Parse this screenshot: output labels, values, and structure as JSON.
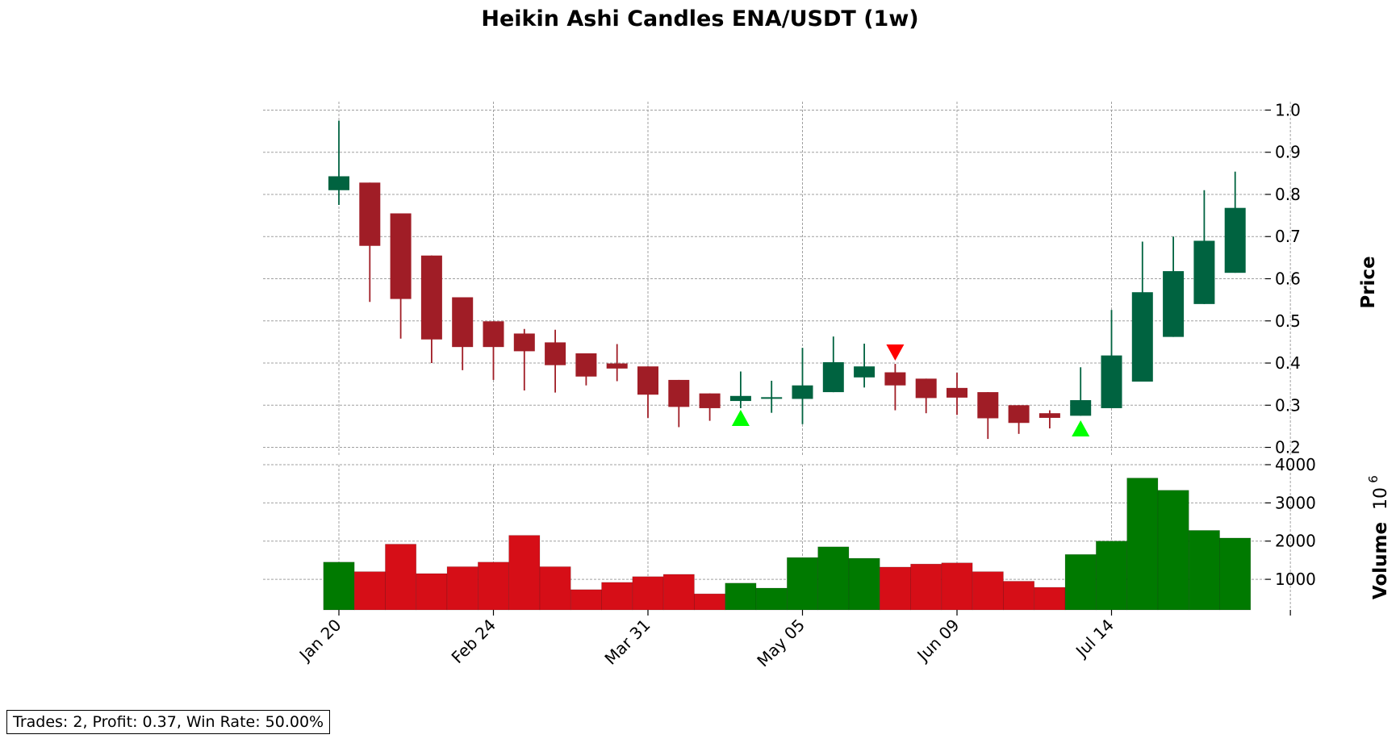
{
  "chart_data": {
    "type": "candlestick",
    "title": "Heikin Ashi Candles ENA/USDT (1w)",
    "price_axis": {
      "label": "Price",
      "ticks": [
        0.2,
        0.3,
        0.4,
        0.5,
        0.6,
        0.7,
        0.8,
        0.9,
        1.0
      ],
      "tick_labels": [
        "0.2",
        "0.3",
        "0.4",
        "0.5",
        "0.6",
        "0.7",
        "0.8",
        "0.9",
        "1.0"
      ],
      "ylim": [
        0.18,
        1.02
      ],
      "grid": true
    },
    "volume_axis": {
      "label": "Volume",
      "multiplier_label": "10",
      "multiplier_exponent": "6",
      "ticks": [
        1000,
        2000,
        3000,
        4000
      ],
      "tick_labels": [
        "1000",
        "2000",
        "3000",
        "4000"
      ],
      "ylim": [
        200,
        4000
      ],
      "grid": true
    },
    "x_axis": {
      "tick_labels": [
        "Jan 20",
        "Feb 24",
        "Mar 31",
        "May 05",
        "Jun 09",
        "Jul 14"
      ],
      "tick_positions": [
        0,
        5,
        10,
        15,
        20,
        25
      ],
      "xlim": [
        -0.5,
        30.5
      ]
    },
    "candles": [
      {
        "open": 0.81,
        "high": 0.975,
        "low": 0.775,
        "close": 0.843
      },
      {
        "open": 0.828,
        "high": 0.828,
        "low": 0.545,
        "close": 0.678
      },
      {
        "open": 0.755,
        "high": 0.755,
        "low": 0.458,
        "close": 0.552
      },
      {
        "open": 0.655,
        "high": 0.655,
        "low": 0.4,
        "close": 0.456
      },
      {
        "open": 0.556,
        "high": 0.556,
        "low": 0.383,
        "close": 0.438
      },
      {
        "open": 0.499,
        "high": 0.499,
        "low": 0.36,
        "close": 0.438
      },
      {
        "open": 0.47,
        "high": 0.481,
        "low": 0.335,
        "close": 0.428
      },
      {
        "open": 0.449,
        "high": 0.479,
        "low": 0.33,
        "close": 0.395
      },
      {
        "open": 0.423,
        "high": 0.423,
        "low": 0.347,
        "close": 0.368
      },
      {
        "open": 0.399,
        "high": 0.445,
        "low": 0.357,
        "close": 0.387
      },
      {
        "open": 0.392,
        "high": 0.392,
        "low": 0.27,
        "close": 0.325
      },
      {
        "open": 0.36,
        "high": 0.36,
        "low": 0.248,
        "close": 0.296
      },
      {
        "open": 0.328,
        "high": 0.328,
        "low": 0.263,
        "close": 0.293
      },
      {
        "open": 0.31,
        "high": 0.38,
        "low": 0.293,
        "close": 0.322
      },
      {
        "open": 0.316,
        "high": 0.358,
        "low": 0.282,
        "close": 0.319
      },
      {
        "open": 0.315,
        "high": 0.436,
        "low": 0.255,
        "close": 0.347
      },
      {
        "open": 0.331,
        "high": 0.463,
        "low": 0.331,
        "close": 0.402
      },
      {
        "open": 0.366,
        "high": 0.446,
        "low": 0.342,
        "close": 0.392
      },
      {
        "open": 0.378,
        "high": 0.398,
        "low": 0.288,
        "close": 0.347
      },
      {
        "open": 0.363,
        "high": 0.363,
        "low": 0.281,
        "close": 0.317
      },
      {
        "open": 0.341,
        "high": 0.377,
        "low": 0.277,
        "close": 0.318
      },
      {
        "open": 0.331,
        "high": 0.331,
        "low": 0.22,
        "close": 0.269
      },
      {
        "open": 0.3,
        "high": 0.3,
        "low": 0.232,
        "close": 0.258
      },
      {
        "open": 0.281,
        "high": 0.288,
        "low": 0.245,
        "close": 0.27
      },
      {
        "open": 0.275,
        "high": 0.39,
        "low": 0.275,
        "close": 0.312
      },
      {
        "open": 0.293,
        "high": 0.526,
        "low": 0.293,
        "close": 0.418
      },
      {
        "open": 0.356,
        "high": 0.688,
        "low": 0.356,
        "close": 0.568
      },
      {
        "open": 0.462,
        "high": 0.7,
        "low": 0.462,
        "close": 0.618
      },
      {
        "open": 0.54,
        "high": 0.81,
        "low": 0.54,
        "close": 0.69
      },
      {
        "open": 0.614,
        "high": 0.854,
        "low": 0.614,
        "close": 0.768
      }
    ],
    "volume": [
      1450,
      1200,
      1920,
      1150,
      1330,
      1450,
      2150,
      1330,
      730,
      920,
      1070,
      1130,
      620,
      900,
      770,
      1570,
      1850,
      1550,
      1320,
      1400,
      1430,
      1200,
      950,
      790,
      1650,
      2000,
      3650,
      3330,
      2280,
      2080
    ],
    "buy_signals": [
      {
        "index": 13,
        "price": 0.27
      },
      {
        "index": 24,
        "price": 0.245
      }
    ],
    "sell_signals": [
      {
        "index": 18,
        "price": 0.425
      }
    ],
    "colors": {
      "candle_up": "#006340",
      "candle_down": "#a01d26",
      "volume_up": "#007a00",
      "volume_down": "#d60e17",
      "buy_marker": "#00ff00",
      "sell_marker": "#ff0000",
      "grid": "#a0a0a0"
    }
  },
  "stats": {
    "text": "Trades: 2, Profit: 0.37, Win Rate: 50.00%"
  }
}
